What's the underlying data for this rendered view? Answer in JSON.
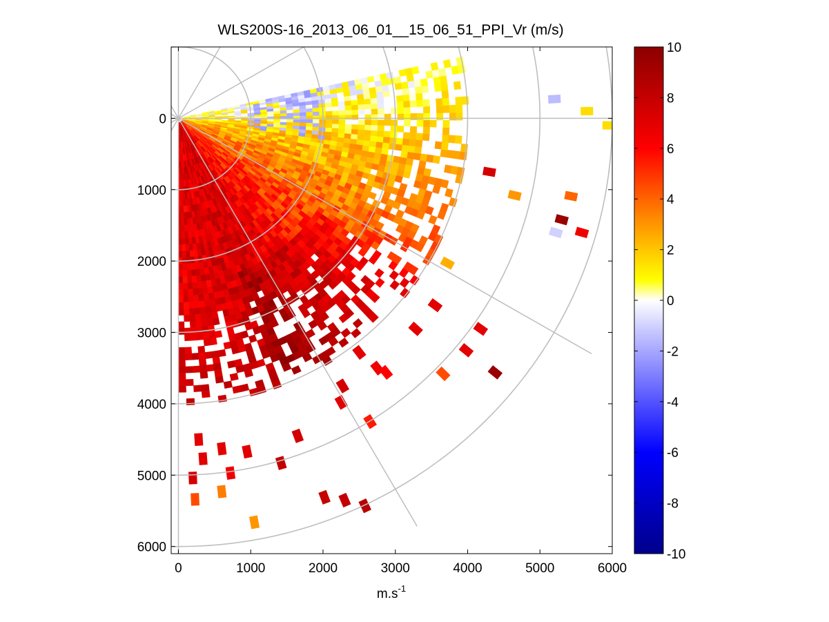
{
  "chart_data": {
    "type": "heatmap",
    "subtype": "polar-ppi-scan",
    "title": "WLS200S-16_2013_06_01__15_06_51_PPI_Vr (m/s)",
    "xlabel_main": "m.s",
    "xlabel_sup": "-1",
    "ylabel": "",
    "xlim": [
      -100,
      6000
    ],
    "ylim": [
      6100,
      -1000
    ],
    "x_ticks": [
      0,
      1000,
      2000,
      3000,
      4000,
      5000,
      6000
    ],
    "x_tick_labels": [
      "0",
      "1000",
      "2000",
      "3000",
      "4000",
      "5000",
      "6000"
    ],
    "y_ticks": [
      0,
      1000,
      2000,
      3000,
      4000,
      5000,
      6000
    ],
    "y_tick_labels": [
      "0",
      "1000",
      "2000",
      "3000",
      "4000",
      "5000",
      "6000"
    ],
    "polar_grid": {
      "ring_radii": [
        1000,
        2000,
        3000,
        4000,
        5000,
        6000
      ],
      "spoke_angles_deg_from_down": [
        0,
        30,
        60,
        90,
        120,
        150
      ]
    },
    "scan_sector_deg_from_down": [
      0,
      102
    ],
    "range_m": [
      0,
      4000
    ],
    "colorbar": {
      "min": -10,
      "max": 10,
      "ticks": [
        10,
        8,
        6,
        4,
        2,
        0,
        -2,
        -4,
        -6,
        -8,
        -10
      ],
      "tick_labels": [
        "10",
        "8",
        "6",
        "4",
        "2",
        "0",
        "-2",
        "-4",
        "-6",
        "-8",
        "-10"
      ],
      "colormap": [
        "#00008b",
        "#0000ff",
        "#c8c8ff",
        "#ffffff",
        "#ffff00",
        "#ff8c00",
        "#ff0000",
        "#8b0000"
      ]
    },
    "velocity_profile": [
      {
        "angle_deg": 5,
        "vr": 7.0
      },
      {
        "angle_deg": 25,
        "vr": 7.5
      },
      {
        "angle_deg": 45,
        "vr": 5.5
      },
      {
        "angle_deg": 65,
        "vr": 3.5
      },
      {
        "angle_deg": 85,
        "vr": 1.5
      },
      {
        "angle_deg": 100,
        "vr": 0.0
      }
    ],
    "far_range_points": [
      {
        "x": 4300,
        "y": 750,
        "vr": 7.5
      },
      {
        "x": 4650,
        "y": 1080,
        "vr": 3.0
      },
      {
        "x": 5300,
        "y": 1420,
        "vr": 9.5
      },
      {
        "x": 5220,
        "y": 1600,
        "vr": -1.0
      },
      {
        "x": 5580,
        "y": 1600,
        "vr": 6.5
      },
      {
        "x": 5430,
        "y": 1090,
        "vr": 4.0
      },
      {
        "x": 5200,
        "y": -270,
        "vr": -1.5
      },
      {
        "x": 5650,
        "y": -100,
        "vr": 1.5
      },
      {
        "x": 5950,
        "y": 100,
        "vr": 1.5
      },
      {
        "x": 3720,
        "y": 2030,
        "vr": 2.5
      },
      {
        "x": 3550,
        "y": 2620,
        "vr": 7.0
      },
      {
        "x": 3280,
        "y": 2950,
        "vr": 7.0
      },
      {
        "x": 4180,
        "y": 2950,
        "vr": 7.0
      },
      {
        "x": 3980,
        "y": 3250,
        "vr": 7.0
      },
      {
        "x": 3660,
        "y": 3580,
        "vr": 4.5
      },
      {
        "x": 4380,
        "y": 3560,
        "vr": 9.5
      },
      {
        "x": 2500,
        "y": 3280,
        "vr": 7.0
      },
      {
        "x": 2750,
        "y": 3500,
        "vr": 6.5
      },
      {
        "x": 2870,
        "y": 3560,
        "vr": 6.0
      },
      {
        "x": 2270,
        "y": 3750,
        "vr": 7.5
      },
      {
        "x": 2250,
        "y": 3980,
        "vr": 7.0
      },
      {
        "x": 2650,
        "y": 4250,
        "vr": 5.5
      },
      {
        "x": 1650,
        "y": 4450,
        "vr": 7.5
      },
      {
        "x": 1420,
        "y": 4830,
        "vr": 8.0
      },
      {
        "x": 950,
        "y": 4670,
        "vr": 7.0
      },
      {
        "x": 720,
        "y": 4970,
        "vr": 6.5
      },
      {
        "x": 2020,
        "y": 5310,
        "vr": 8.0
      },
      {
        "x": 2300,
        "y": 5350,
        "vr": 8.0
      },
      {
        "x": 2580,
        "y": 5430,
        "vr": 8.5
      },
      {
        "x": 1050,
        "y": 5660,
        "vr": 3.0
      },
      {
        "x": 600,
        "y": 5230,
        "vr": 3.5
      },
      {
        "x": 230,
        "y": 5340,
        "vr": 4.5
      },
      {
        "x": 200,
        "y": 5040,
        "vr": 7.5
      },
      {
        "x": 340,
        "y": 4770,
        "vr": 7.0
      },
      {
        "x": 280,
        "y": 4500,
        "vr": 7.0
      },
      {
        "x": 600,
        "y": 4630,
        "vr": 7.0
      }
    ]
  }
}
